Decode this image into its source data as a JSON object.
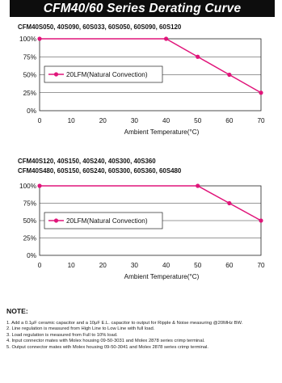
{
  "page": {
    "title": "CFM40/60 Series Derating Curve"
  },
  "chart_data": [
    {
      "type": "line",
      "models": "CFM40S050, 40S090, 60S033, 60S050, 60S090, 60S120",
      "title": "",
      "xlabel": "Ambient Temperature(°C)",
      "ylabel": "",
      "xlim": [
        0,
        70
      ],
      "ylim": [
        0,
        100
      ],
      "x_ticks": [
        0,
        10,
        20,
        30,
        40,
        50,
        60,
        70
      ],
      "y_ticks": [
        0,
        25,
        50,
        75,
        100
      ],
      "x_tick_labels": [
        "0",
        "10",
        "20",
        "30",
        "40",
        "50",
        "60",
        "70"
      ],
      "y_tick_labels": [
        "0%",
        "25%",
        "50%",
        "75%",
        "100%"
      ],
      "grid": "horizontal",
      "legend_position": "center-left",
      "series": [
        {
          "name": "20LFM(Natural Convection)",
          "color": "#e0157a",
          "x": [
            0,
            40,
            50,
            60,
            70
          ],
          "y": [
            100,
            100,
            75,
            50,
            25
          ]
        }
      ]
    },
    {
      "type": "line",
      "models": [
        "CFM40S120, 40S150, 40S240, 40S300, 40S360",
        "CFM40S480, 60S150, 60S240, 60S300, 60S360, 60S480"
      ],
      "title": "",
      "xlabel": "Ambient Temperature(°C)",
      "ylabel": "",
      "xlim": [
        0,
        70
      ],
      "ylim": [
        0,
        100
      ],
      "x_ticks": [
        0,
        10,
        20,
        30,
        40,
        50,
        60,
        70
      ],
      "y_ticks": [
        0,
        25,
        50,
        75,
        100
      ],
      "x_tick_labels": [
        "0",
        "10",
        "20",
        "30",
        "40",
        "50",
        "60",
        "70"
      ],
      "y_tick_labels": [
        "0%",
        "25%",
        "50%",
        "75%",
        "100%"
      ],
      "grid": "horizontal",
      "legend_position": "center-left",
      "series": [
        {
          "name": "20LFM(Natural Convection)",
          "color": "#e0157a",
          "x": [
            0,
            50,
            60,
            70
          ],
          "y": [
            100,
            100,
            75,
            50
          ]
        }
      ]
    }
  ],
  "note": {
    "title": "NOTE:",
    "items": [
      "1. Add a 0.1μF ceramic capacitor and a 10μF E.L. capacitor to output for Ripple & Noise measuring @20MHz BW.",
      "2. Line regulation is measured from High Line to Low Line with full load.",
      "3. Load regulation is measured from Full to 10% load.",
      "4. Input connector mates with Molex housing 09-50-3031 and Molex 2878 series crimp terminal.",
      "5. Output connector mates with Molex housing 09-50-3041 and Molex 2878 series crimp terminal."
    ]
  }
}
